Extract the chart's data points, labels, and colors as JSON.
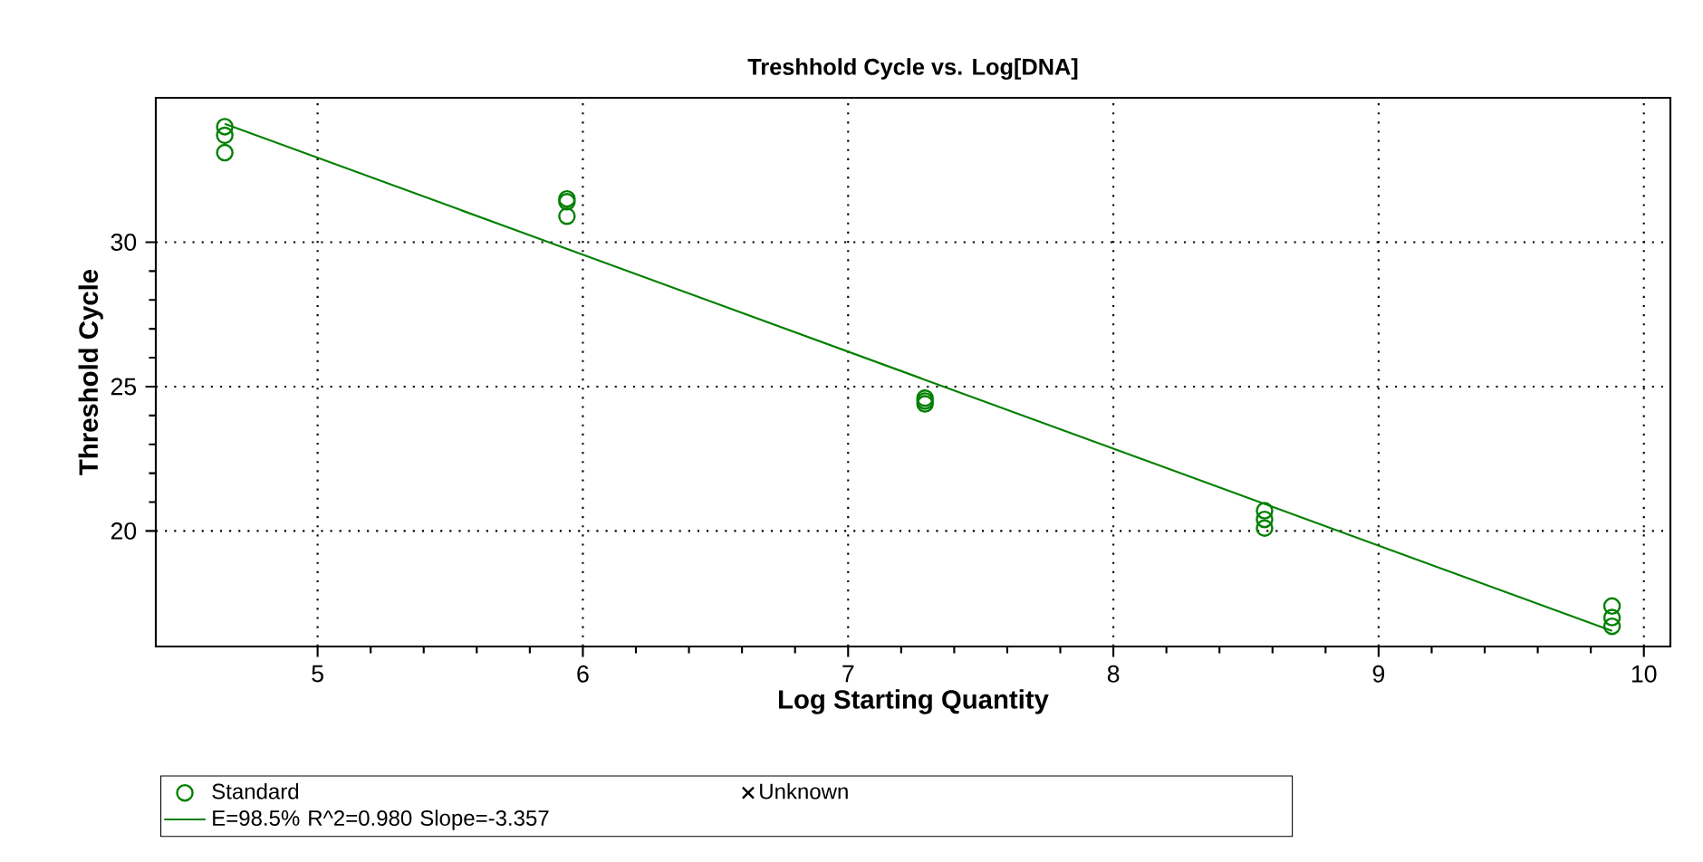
{
  "chart_data": {
    "type": "scatter",
    "title": "Treshhold Cycle vs. Log[DNA]",
    "xlabel": "Log Starting Quantity",
    "ylabel": "Threshold Cycle",
    "xlim": [
      4.39,
      10.1
    ],
    "ylim": [
      16,
      35
    ],
    "xticks": [
      5,
      6,
      7,
      8,
      9,
      10
    ],
    "yticks": [
      20,
      25,
      30
    ],
    "grid": true,
    "legend": "bottom",
    "series": [
      {
        "name": "Standard",
        "marker": "circle",
        "color": "#008000",
        "x": [
          4.65,
          4.65,
          4.65,
          5.94,
          5.94,
          5.94,
          7.29,
          7.29,
          7.29,
          8.57,
          8.57,
          8.57,
          9.88,
          9.88,
          9.88
        ],
        "values": [
          34.0,
          33.7,
          33.1,
          31.5,
          31.4,
          30.9,
          24.6,
          24.5,
          24.4,
          20.7,
          20.4,
          20.1,
          17.4,
          17.0,
          16.7
        ]
      },
      {
        "name": "Unknown",
        "type": "scatter",
        "marker": "cross",
        "color": "#000000"
      },
      {
        "name": "E=98.5% R^2=0.980 Slope=-3.357",
        "type": "line",
        "marker": "none",
        "color": "#008000",
        "x": [
          4.65,
          9.88
        ],
        "values": [
          34.1,
          16.54
        ]
      }
    ]
  }
}
